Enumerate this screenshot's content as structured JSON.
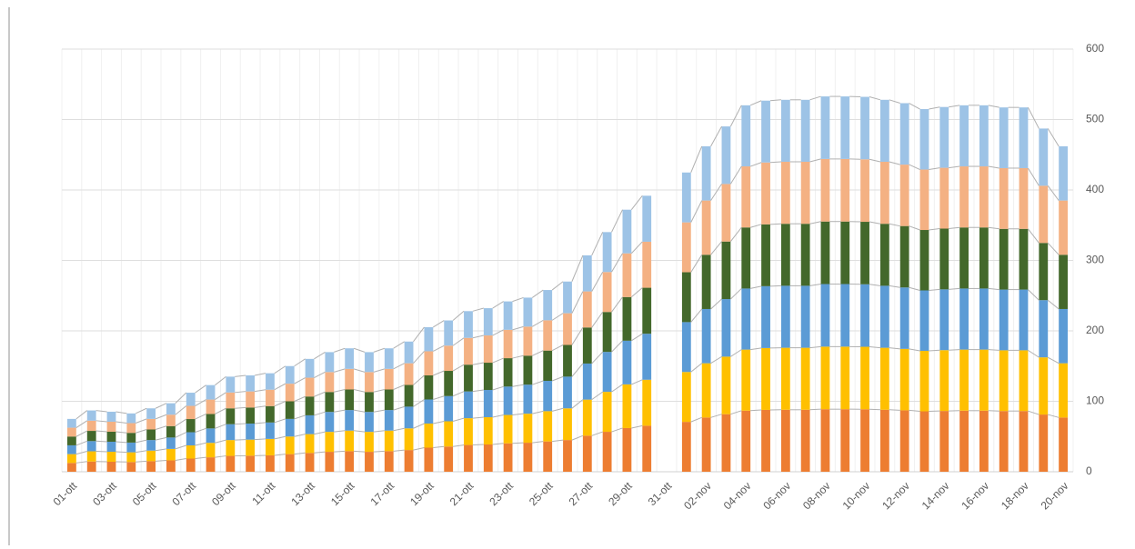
{
  "chart_data": {
    "type": "stacked_bar",
    "categories": [
      "01-ott",
      null,
      "03-ott",
      null,
      "05-ott",
      null,
      "07-ott",
      null,
      "09-ott",
      null,
      "11-ott",
      null,
      "13-ott",
      null,
      "15-ott",
      null,
      "17-ott",
      null,
      "19-ott",
      null,
      "21-ott",
      null,
      "23-ott",
      null,
      "25-ott",
      null,
      "27-ott",
      null,
      "29-ott",
      null,
      "31-ott",
      null,
      "02-nov",
      null,
      "04-nov",
      null,
      "06-nov",
      null,
      "08-nov",
      null,
      "10-nov",
      null,
      "12-nov",
      null,
      "14-nov",
      null,
      "16-nov",
      null,
      "18-nov",
      null,
      "20-nov"
    ],
    "series": [
      {
        "color": "#ed7d31",
        "values": [
          12.5,
          14.5,
          14.2,
          13.8,
          15,
          16.2,
          18.7,
          20.5,
          22.5,
          22.8,
          23.3,
          25,
          26.7,
          28.3,
          29.2,
          28.3,
          29.2,
          30.8,
          34.2,
          35.8,
          38,
          38.7,
          40.3,
          41.2,
          43,
          45,
          51.2,
          56.7,
          62,
          65.3,
          null,
          70.8,
          77,
          81.7,
          86.7,
          87.8,
          88,
          88,
          88.8,
          88.8,
          88.7,
          88,
          87.2,
          85.8,
          86.3,
          86.7,
          86.7,
          86.2,
          86.2,
          81.2,
          77
        ]
      },
      {
        "color": "#ffc000",
        "values": [
          12.5,
          14.5,
          14.2,
          13.8,
          15,
          16.2,
          18.7,
          20.5,
          22.5,
          22.8,
          23.3,
          25,
          26.7,
          28.3,
          29.2,
          28.3,
          29.2,
          30.8,
          34.2,
          35.8,
          38,
          38.7,
          40.3,
          41.2,
          43,
          45,
          51.2,
          56.7,
          62,
          65.3,
          null,
          70.8,
          77,
          81.7,
          86.7,
          87.8,
          88,
          88,
          88.8,
          88.8,
          88.7,
          88,
          87.2,
          85.8,
          86.3,
          86.7,
          86.7,
          86.2,
          86.2,
          81.2,
          77
        ]
      },
      {
        "color": "#5b9bd5",
        "values": [
          12.5,
          14.5,
          14.2,
          13.8,
          15,
          16.2,
          18.7,
          20.5,
          22.5,
          22.8,
          23.3,
          25,
          26.7,
          28.3,
          29.2,
          28.3,
          29.2,
          30.8,
          34.2,
          35.8,
          38,
          38.7,
          40.3,
          41.2,
          43,
          45,
          51.2,
          56.7,
          62,
          65.3,
          null,
          70.8,
          77,
          81.7,
          86.7,
          87.8,
          88,
          88,
          88.8,
          88.8,
          88.7,
          88,
          87.2,
          85.8,
          86.3,
          86.7,
          86.7,
          86.2,
          86.2,
          81.2,
          77
        ]
      },
      {
        "color": "#43682b",
        "values": [
          12.5,
          14.5,
          14.2,
          13.8,
          15,
          16.2,
          18.7,
          20.5,
          22.5,
          22.8,
          23.3,
          25,
          26.7,
          28.3,
          29.2,
          28.3,
          29.2,
          30.8,
          34.2,
          35.8,
          38,
          38.7,
          40.3,
          41.2,
          43,
          45,
          51.2,
          56.7,
          62,
          65.3,
          null,
          70.8,
          77,
          81.7,
          86.7,
          87.8,
          88,
          88,
          88.8,
          88.8,
          88.7,
          88,
          87.2,
          85.8,
          86.3,
          86.7,
          86.7,
          86.2,
          86.2,
          81.2,
          77
        ]
      },
      {
        "color": "#f4b183",
        "values": [
          12.5,
          14.5,
          14.2,
          13.8,
          15,
          16.2,
          18.7,
          20.5,
          22.5,
          22.8,
          23.3,
          25,
          26.7,
          28.3,
          29.2,
          28.3,
          29.2,
          30.8,
          34.2,
          35.8,
          38,
          38.7,
          40.3,
          41.2,
          43,
          45,
          51.2,
          56.7,
          62,
          65.3,
          null,
          70.8,
          77,
          81.7,
          86.7,
          87.8,
          88,
          88,
          88.8,
          88.8,
          88.7,
          88,
          87.2,
          85.8,
          86.3,
          86.7,
          86.7,
          86.2,
          86.2,
          81.2,
          77
        ]
      },
      {
        "color": "#9dc3e6",
        "values": [
          12.5,
          14.5,
          14.2,
          13.8,
          15,
          16.2,
          18.7,
          20.5,
          22.5,
          22.8,
          23.3,
          25,
          26.7,
          28.3,
          29.2,
          28.3,
          29.2,
          30.8,
          34.2,
          35.8,
          38,
          38.7,
          40.3,
          41.2,
          43,
          45,
          51.2,
          56.7,
          62,
          65.3,
          null,
          70.8,
          77,
          81.7,
          86.7,
          87.8,
          88,
          88,
          88.8,
          88.8,
          88.7,
          88,
          87.2,
          85.8,
          86.3,
          86.7,
          86.7,
          86.2,
          86.2,
          81.2,
          77
        ]
      }
    ],
    "ylim": [
      0,
      600
    ],
    "yticks": [
      0,
      100,
      200,
      300,
      400,
      500,
      600
    ],
    "grid": true,
    "y_axis_side": "right",
    "series_lines": true
  }
}
